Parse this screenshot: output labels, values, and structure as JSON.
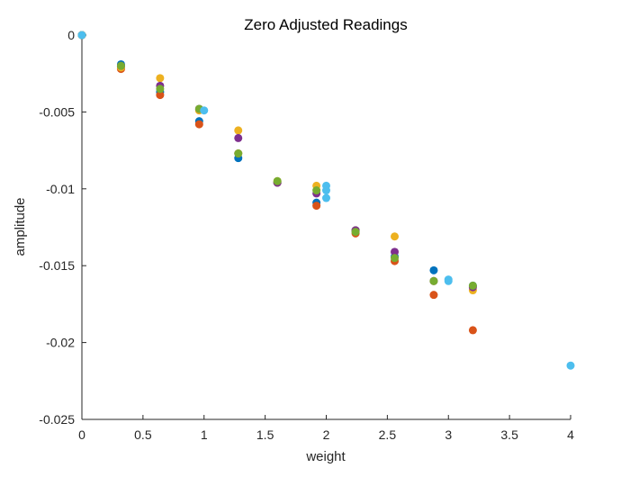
{
  "chart_data": {
    "type": "scatter",
    "title": "Zero Adjusted Readings",
    "xlabel": "weight",
    "ylabel": "amplitude",
    "xlim": [
      0,
      4
    ],
    "ylim": [
      -0.025,
      0
    ],
    "xticks": [
      0,
      0.5,
      1,
      1.5,
      2,
      2.5,
      3,
      3.5,
      4
    ],
    "xtick_labels": [
      "0",
      "0.5",
      "1",
      "1.5",
      "2",
      "2.5",
      "3",
      "3.5",
      "4"
    ],
    "yticks": [
      0,
      -0.005,
      -0.01,
      -0.015,
      -0.02,
      -0.025
    ],
    "ytick_labels": [
      "0",
      "-0.005",
      "-0.01",
      "-0.015",
      "-0.02",
      "-0.025"
    ],
    "grid": false,
    "legend": false,
    "series": [
      {
        "color": "#0072BD",
        "points": [
          [
            0,
            0
          ],
          [
            0.32,
            -0.0019
          ],
          [
            0.64,
            -0.0037
          ],
          [
            0.96,
            -0.0056
          ],
          [
            1.28,
            -0.008
          ],
          [
            1.6,
            -0.0096
          ],
          [
            1.92,
            -0.0109
          ],
          [
            2.24,
            -0.0127
          ],
          [
            2.56,
            -0.0144
          ],
          [
            2.88,
            -0.0153
          ],
          [
            3.2,
            -0.0163
          ]
        ]
      },
      {
        "color": "#D95319",
        "points": [
          [
            0,
            0
          ],
          [
            0.32,
            -0.0022
          ],
          [
            0.64,
            -0.0039
          ],
          [
            0.96,
            -0.0058
          ],
          [
            1.28,
            -0.0077
          ],
          [
            1.6,
            -0.0096
          ],
          [
            1.92,
            -0.0111
          ],
          [
            2.24,
            -0.0129
          ],
          [
            2.56,
            -0.0147
          ],
          [
            2.88,
            -0.0169
          ],
          [
            3.2,
            -0.0192
          ]
        ]
      },
      {
        "color": "#EDB120",
        "points": [
          [
            0,
            0
          ],
          [
            0.32,
            -0.0021
          ],
          [
            0.64,
            -0.0028
          ],
          [
            0.96,
            -0.0049
          ],
          [
            1.28,
            -0.0062
          ],
          [
            1.6,
            -0.0095
          ],
          [
            1.92,
            -0.0098
          ],
          [
            2.24,
            -0.0127
          ],
          [
            2.56,
            -0.0131
          ],
          [
            2.88,
            -0.016
          ],
          [
            3.2,
            -0.0166
          ]
        ]
      },
      {
        "color": "#7E2F8E",
        "points": [
          [
            0,
            0
          ],
          [
            0.32,
            -0.002
          ],
          [
            0.64,
            -0.0033
          ],
          [
            0.96,
            -0.0048
          ],
          [
            1.28,
            -0.0067
          ],
          [
            1.6,
            -0.0096
          ],
          [
            1.92,
            -0.0103
          ],
          [
            2.24,
            -0.0127
          ],
          [
            2.56,
            -0.0141
          ],
          [
            2.88,
            -0.016
          ],
          [
            3.2,
            -0.0164
          ]
        ]
      },
      {
        "color": "#77AC30",
        "points": [
          [
            0,
            0
          ],
          [
            0.32,
            -0.002
          ],
          [
            0.64,
            -0.0035
          ],
          [
            0.96,
            -0.0048
          ],
          [
            1.28,
            -0.0077
          ],
          [
            1.6,
            -0.0095
          ],
          [
            1.92,
            -0.0101
          ],
          [
            2.24,
            -0.0128
          ],
          [
            2.56,
            -0.0145
          ],
          [
            2.88,
            -0.016
          ],
          [
            3.2,
            -0.0163
          ]
        ]
      },
      {
        "color": "#4DBEEE",
        "points": [
          [
            0,
            0
          ],
          [
            1,
            -0.0049
          ],
          [
            2,
            -0.0098
          ],
          [
            2,
            -0.0101
          ],
          [
            2,
            -0.0106
          ],
          [
            3,
            -0.0159
          ],
          [
            3,
            -0.016
          ],
          [
            4,
            -0.0215
          ]
        ]
      }
    ]
  }
}
